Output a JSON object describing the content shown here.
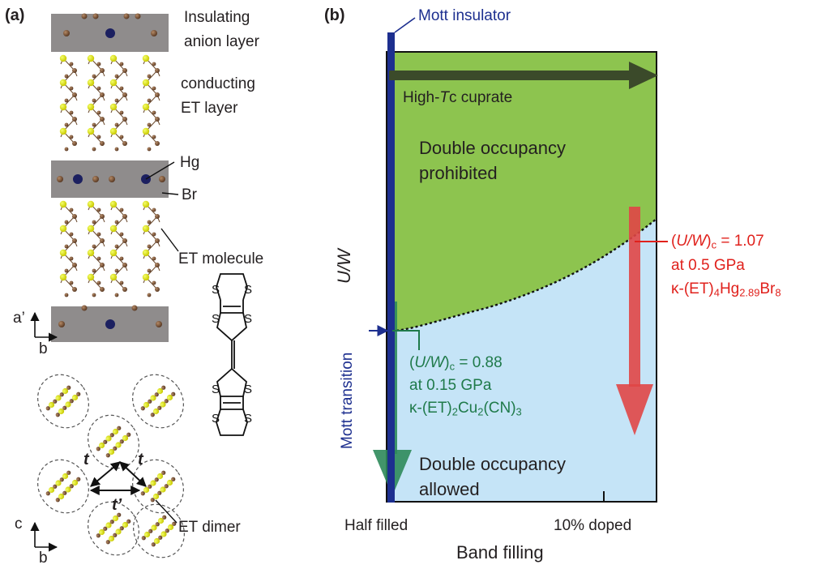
{
  "panel_a": {
    "label": "(a)",
    "insulating_layer": [
      "Insulating",
      "anion layer"
    ],
    "conducting_layer": [
      "conducting",
      "ET layer"
    ],
    "hg": "Hg",
    "br": "Br",
    "et_molecule": "ET molecule",
    "et_dimer": "ET dimer",
    "axis_top": {
      "vertical": "a’",
      "horizontal": "b"
    },
    "axis_bottom": {
      "vertical": "c",
      "horizontal": "b"
    },
    "transfer_t": "t",
    "transfer_t_prime": "t’",
    "sulfur": "S"
  },
  "panel_b": {
    "label": "(b)",
    "mott_insulator": "Mott insulator",
    "cuprate_pre": "High-",
    "cuprate_it": "T",
    "cuprate_post": "c cuprate",
    "prohibited": [
      "Double occupancy",
      "prohibited"
    ],
    "allowed": [
      "Double occupancy",
      "allowed"
    ],
    "y_axis": "U/W",
    "x_axis": "Band filling",
    "half_filled": "Half filled",
    "doped": "10% doped",
    "mott_transition": "Mott transition",
    "green_annot": {
      "uw": "U/W",
      "sub": "c",
      "value": " = 0.88",
      "pressure": "at 0.15 GPa",
      "compound_pre": "κ-(ET)",
      "c_sub1": "2",
      "c_mid": "Cu",
      "c_sub2": "2",
      "c_post": "(CN)",
      "c_sub3": "3"
    },
    "red_annot": {
      "uw": "U/W",
      "sub": "c",
      "value": " = 1.07",
      "pressure": "at 0.5 GPa",
      "compound_pre": "κ-(ET)",
      "c_sub1": "4",
      "c_mid": "Hg",
      "c_sub2": "2.89",
      "c_post": "Br",
      "c_sub3": "8"
    },
    "colors": {
      "prohibited_region": "#8dc44f",
      "allowed_region": "#c5e4f7",
      "mott_line": "#1d2f8f",
      "cuprate_arrow": "#3b4a2a",
      "green_arrow": "#2e8a5a",
      "red_arrow": "#e04646"
    }
  }
}
